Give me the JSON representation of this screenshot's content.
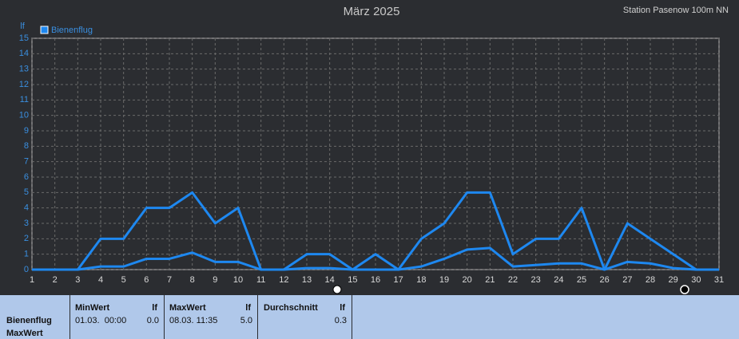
{
  "chart_data": {
    "type": "line",
    "title": "März 2025",
    "subtitle": "Station Pasenow 100m NN",
    "y_label": "lf",
    "x": [
      1,
      2,
      3,
      4,
      5,
      6,
      7,
      8,
      9,
      10,
      11,
      12,
      13,
      14,
      15,
      16,
      17,
      18,
      19,
      20,
      21,
      22,
      23,
      24,
      25,
      26,
      27,
      28,
      29,
      30,
      31
    ],
    "xlim": [
      1,
      31
    ],
    "xticks": [
      1,
      2,
      3,
      4,
      5,
      6,
      7,
      8,
      9,
      10,
      11,
      12,
      13,
      14,
      15,
      16,
      17,
      18,
      19,
      20,
      21,
      22,
      23,
      24,
      25,
      26,
      27,
      28,
      29,
      30,
      31
    ],
    "ylim": [
      0,
      15
    ],
    "yticks": [
      0,
      1,
      2,
      3,
      4,
      5,
      6,
      7,
      8,
      9,
      10,
      11,
      12,
      13,
      14,
      15
    ],
    "grid": true,
    "series": [
      {
        "name": "Bienenflug",
        "color": "#1e88f0",
        "values": [
          0,
          0,
          0,
          2,
          2,
          4,
          4,
          5,
          3,
          4,
          0,
          0,
          1,
          1,
          0,
          1,
          0,
          2,
          3,
          5,
          5,
          1,
          2,
          2,
          4,
          0,
          3,
          2,
          1,
          0,
          0
        ]
      },
      {
        "color": "#1e88f0",
        "values": [
          0,
          0,
          0,
          0.2,
          0.2,
          0.7,
          0.7,
          1.1,
          0.5,
          0.5,
          0,
          0,
          0.1,
          0.1,
          0,
          0,
          0,
          0.2,
          0.7,
          1.3,
          1.4,
          0.2,
          0.3,
          0.4,
          0.4,
          0,
          0.5,
          0.4,
          0.1,
          0,
          0
        ]
      }
    ]
  },
  "table": {
    "row_label": [
      "Bienenflug",
      "MaxWert"
    ],
    "columns": [
      {
        "title": "MinWert",
        "unit": "lf",
        "time": "01.03.  00:00",
        "value": "0.0"
      },
      {
        "title": "MaxWert",
        "unit": "lf",
        "time": "08.03. 11:35",
        "value": "5.0"
      },
      {
        "title": "Durchschnitt",
        "unit": "lf",
        "value": "0.3"
      }
    ]
  }
}
